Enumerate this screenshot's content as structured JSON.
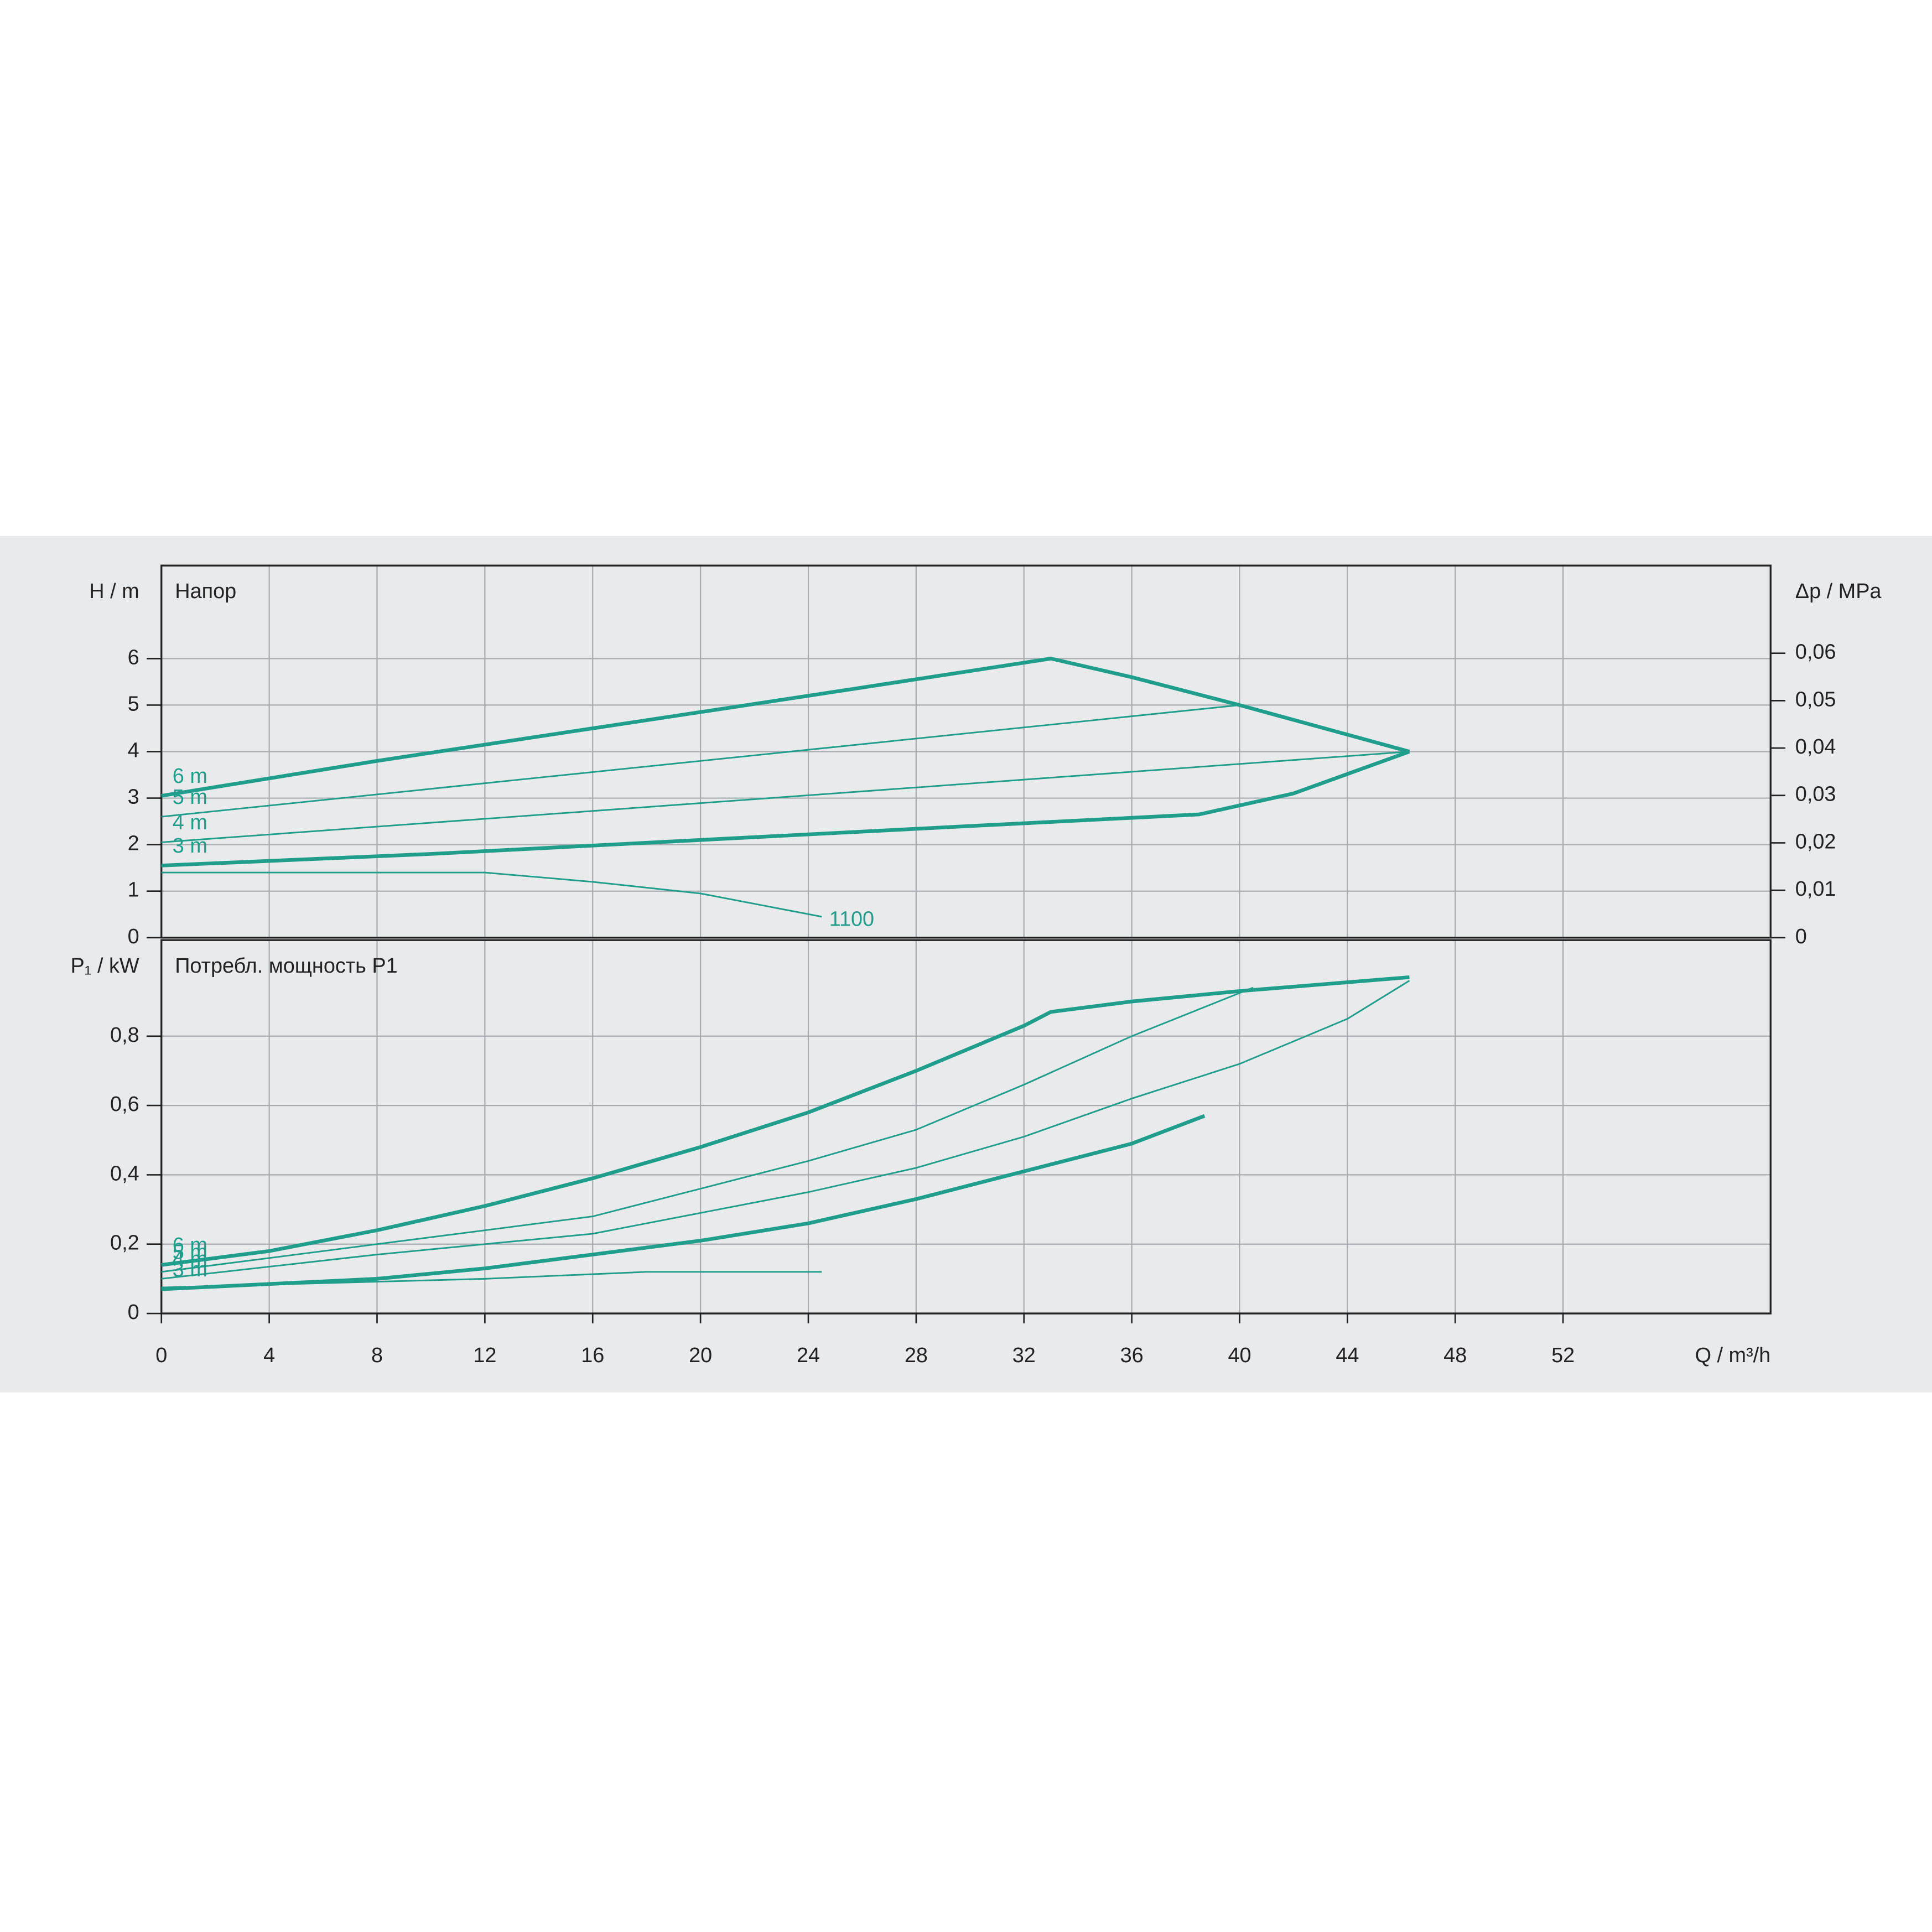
{
  "chart_data": [
    {
      "type": "line",
      "title": "Напор",
      "ylabel": "H / m",
      "y2label": "Δp / MPa",
      "grid": true,
      "xlim": [
        0,
        59.7
      ],
      "xticks": [
        0,
        4,
        8,
        12,
        16,
        20,
        24,
        28,
        32,
        36,
        40,
        44,
        48,
        52
      ],
      "ylim": [
        0,
        8
      ],
      "yticks": [
        0,
        1,
        2,
        3,
        4,
        5,
        6
      ],
      "y2lim": [
        0,
        0.0785
      ],
      "y2ticks": [
        0,
        {
          "value": 0.01,
          "label": "0,01"
        },
        {
          "value": 0.02,
          "label": "0,02"
        },
        {
          "value": 0.03,
          "label": "0,03"
        },
        {
          "value": 0.04,
          "label": "0,04"
        },
        {
          "value": 0.05,
          "label": "0,05"
        },
        {
          "value": 0.06,
          "label": "0,06"
        }
      ],
      "series": [
        {
          "name": "6 m",
          "color": "#1f9e8c",
          "linewidth": 3,
          "x": [
            0,
            8,
            16,
            24,
            33,
            36,
            40,
            46.3
          ],
          "values": [
            3.05,
            3.8,
            4.5,
            5.2,
            6.0,
            5.6,
            5.0,
            4.0
          ]
        },
        {
          "name": "5 m",
          "color": "#1f9e8c",
          "linewidth": 1.3,
          "x": [
            0,
            40,
            46.3
          ],
          "values": [
            2.6,
            5.0,
            4.0
          ]
        },
        {
          "name": "4 m",
          "color": "#1f9e8c",
          "linewidth": 1.3,
          "x": [
            0,
            46.3
          ],
          "values": [
            2.05,
            4.0
          ]
        },
        {
          "name": "3 m",
          "color": "#1f9e8c",
          "linewidth": 3,
          "x": [
            0,
            10,
            20,
            30,
            38.5,
            42,
            46.3
          ],
          "values": [
            1.55,
            1.8,
            2.1,
            2.4,
            2.65,
            3.1,
            4.0
          ]
        },
        {
          "name": "1100",
          "color": "#1f9e8c",
          "linewidth": 1.3,
          "label_position": "end",
          "x": [
            0,
            12,
            16,
            20,
            24.5
          ],
          "values": [
            1.4,
            1.4,
            1.2,
            0.95,
            0.45
          ]
        }
      ]
    },
    {
      "type": "line",
      "title": "Потребл. мощность P1",
      "ylabel": "P₁ / kW",
      "xlabel": "Q / m³/h",
      "grid": true,
      "xlim": [
        0,
        59.7
      ],
      "xticks": [
        0,
        4,
        8,
        12,
        16,
        20,
        24,
        28,
        32,
        36,
        40,
        44,
        48,
        52
      ],
      "ylim": [
        0,
        1.077
      ],
      "yticks": [
        0,
        {
          "value": 0.2,
          "label": "0,2"
        },
        {
          "value": 0.4,
          "label": "0,4"
        },
        {
          "value": 0.6,
          "label": "0,6"
        },
        {
          "value": 0.8,
          "label": "0,8"
        }
      ],
      "series": [
        {
          "name": "6 m",
          "color": "#1f9e8c",
          "linewidth": 3,
          "x": [
            0,
            4,
            8,
            12,
            16,
            20,
            24,
            28,
            32,
            33,
            36,
            40,
            46.3
          ],
          "values": [
            0.14,
            0.18,
            0.24,
            0.31,
            0.39,
            0.48,
            0.58,
            0.7,
            0.83,
            0.87,
            0.9,
            0.93,
            0.97
          ]
        },
        {
          "name": "5 m",
          "color": "#1f9e8c",
          "linewidth": 1.3,
          "x": [
            0,
            8,
            16,
            20,
            24,
            28,
            32,
            36,
            40.5
          ],
          "values": [
            0.12,
            0.2,
            0.28,
            0.36,
            0.44,
            0.53,
            0.66,
            0.8,
            0.94
          ]
        },
        {
          "name": "4 m",
          "color": "#1f9e8c",
          "linewidth": 1.3,
          "x": [
            0,
            8,
            16,
            20,
            24,
            28,
            32,
            36,
            40,
            44,
            46.3
          ],
          "values": [
            0.1,
            0.17,
            0.23,
            0.29,
            0.35,
            0.42,
            0.51,
            0.62,
            0.72,
            0.85,
            0.96
          ]
        },
        {
          "name": "3 m",
          "color": "#1f9e8c",
          "linewidth": 3,
          "x": [
            0,
            8,
            12,
            16,
            20,
            24,
            28,
            32,
            36,
            38.7
          ],
          "values": [
            0.07,
            0.1,
            0.13,
            0.17,
            0.21,
            0.26,
            0.33,
            0.41,
            0.49,
            0.57
          ]
        },
        {
          "name": "1100",
          "color": "#1f9e8c",
          "linewidth": 1.3,
          "label_position": "none",
          "x": [
            0,
            12,
            18,
            24.5
          ],
          "values": [
            0.075,
            0.1,
            0.12,
            0.12
          ]
        }
      ]
    }
  ]
}
